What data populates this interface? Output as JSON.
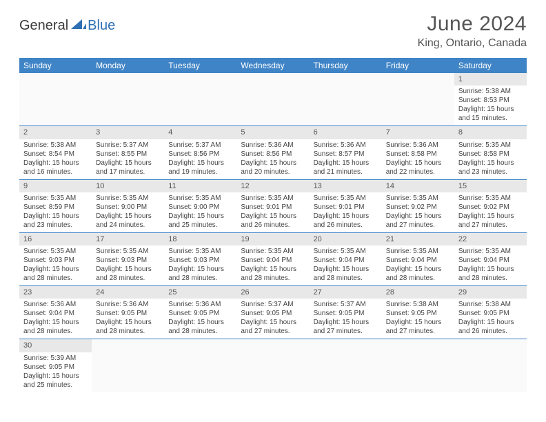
{
  "brand": {
    "general": "General",
    "blue": "Blue"
  },
  "title": {
    "month_year": "June 2024",
    "location": "King, Ontario, Canada"
  },
  "calendar": {
    "header_bg": "#3f84c6",
    "header_fg": "#ffffff",
    "daynum_bg": "#e8e8e8",
    "border_color": "#3f84c6",
    "days": [
      "Sunday",
      "Monday",
      "Tuesday",
      "Wednesday",
      "Thursday",
      "Friday",
      "Saturday"
    ],
    "weeks": [
      [
        null,
        null,
        null,
        null,
        null,
        null,
        {
          "n": "1",
          "sr": "Sunrise: 5:38 AM",
          "ss": "Sunset: 8:53 PM",
          "d1": "Daylight: 15 hours",
          "d2": "and 15 minutes."
        }
      ],
      [
        {
          "n": "2",
          "sr": "Sunrise: 5:38 AM",
          "ss": "Sunset: 8:54 PM",
          "d1": "Daylight: 15 hours",
          "d2": "and 16 minutes."
        },
        {
          "n": "3",
          "sr": "Sunrise: 5:37 AM",
          "ss": "Sunset: 8:55 PM",
          "d1": "Daylight: 15 hours",
          "d2": "and 17 minutes."
        },
        {
          "n": "4",
          "sr": "Sunrise: 5:37 AM",
          "ss": "Sunset: 8:56 PM",
          "d1": "Daylight: 15 hours",
          "d2": "and 19 minutes."
        },
        {
          "n": "5",
          "sr": "Sunrise: 5:36 AM",
          "ss": "Sunset: 8:56 PM",
          "d1": "Daylight: 15 hours",
          "d2": "and 20 minutes."
        },
        {
          "n": "6",
          "sr": "Sunrise: 5:36 AM",
          "ss": "Sunset: 8:57 PM",
          "d1": "Daylight: 15 hours",
          "d2": "and 21 minutes."
        },
        {
          "n": "7",
          "sr": "Sunrise: 5:36 AM",
          "ss": "Sunset: 8:58 PM",
          "d1": "Daylight: 15 hours",
          "d2": "and 22 minutes."
        },
        {
          "n": "8",
          "sr": "Sunrise: 5:35 AM",
          "ss": "Sunset: 8:58 PM",
          "d1": "Daylight: 15 hours",
          "d2": "and 23 minutes."
        }
      ],
      [
        {
          "n": "9",
          "sr": "Sunrise: 5:35 AM",
          "ss": "Sunset: 8:59 PM",
          "d1": "Daylight: 15 hours",
          "d2": "and 23 minutes."
        },
        {
          "n": "10",
          "sr": "Sunrise: 5:35 AM",
          "ss": "Sunset: 9:00 PM",
          "d1": "Daylight: 15 hours",
          "d2": "and 24 minutes."
        },
        {
          "n": "11",
          "sr": "Sunrise: 5:35 AM",
          "ss": "Sunset: 9:00 PM",
          "d1": "Daylight: 15 hours",
          "d2": "and 25 minutes."
        },
        {
          "n": "12",
          "sr": "Sunrise: 5:35 AM",
          "ss": "Sunset: 9:01 PM",
          "d1": "Daylight: 15 hours",
          "d2": "and 26 minutes."
        },
        {
          "n": "13",
          "sr": "Sunrise: 5:35 AM",
          "ss": "Sunset: 9:01 PM",
          "d1": "Daylight: 15 hours",
          "d2": "and 26 minutes."
        },
        {
          "n": "14",
          "sr": "Sunrise: 5:35 AM",
          "ss": "Sunset: 9:02 PM",
          "d1": "Daylight: 15 hours",
          "d2": "and 27 minutes."
        },
        {
          "n": "15",
          "sr": "Sunrise: 5:35 AM",
          "ss": "Sunset: 9:02 PM",
          "d1": "Daylight: 15 hours",
          "d2": "and 27 minutes."
        }
      ],
      [
        {
          "n": "16",
          "sr": "Sunrise: 5:35 AM",
          "ss": "Sunset: 9:03 PM",
          "d1": "Daylight: 15 hours",
          "d2": "and 28 minutes."
        },
        {
          "n": "17",
          "sr": "Sunrise: 5:35 AM",
          "ss": "Sunset: 9:03 PM",
          "d1": "Daylight: 15 hours",
          "d2": "and 28 minutes."
        },
        {
          "n": "18",
          "sr": "Sunrise: 5:35 AM",
          "ss": "Sunset: 9:03 PM",
          "d1": "Daylight: 15 hours",
          "d2": "and 28 minutes."
        },
        {
          "n": "19",
          "sr": "Sunrise: 5:35 AM",
          "ss": "Sunset: 9:04 PM",
          "d1": "Daylight: 15 hours",
          "d2": "and 28 minutes."
        },
        {
          "n": "20",
          "sr": "Sunrise: 5:35 AM",
          "ss": "Sunset: 9:04 PM",
          "d1": "Daylight: 15 hours",
          "d2": "and 28 minutes."
        },
        {
          "n": "21",
          "sr": "Sunrise: 5:35 AM",
          "ss": "Sunset: 9:04 PM",
          "d1": "Daylight: 15 hours",
          "d2": "and 28 minutes."
        },
        {
          "n": "22",
          "sr": "Sunrise: 5:35 AM",
          "ss": "Sunset: 9:04 PM",
          "d1": "Daylight: 15 hours",
          "d2": "and 28 minutes."
        }
      ],
      [
        {
          "n": "23",
          "sr": "Sunrise: 5:36 AM",
          "ss": "Sunset: 9:04 PM",
          "d1": "Daylight: 15 hours",
          "d2": "and 28 minutes."
        },
        {
          "n": "24",
          "sr": "Sunrise: 5:36 AM",
          "ss": "Sunset: 9:05 PM",
          "d1": "Daylight: 15 hours",
          "d2": "and 28 minutes."
        },
        {
          "n": "25",
          "sr": "Sunrise: 5:36 AM",
          "ss": "Sunset: 9:05 PM",
          "d1": "Daylight: 15 hours",
          "d2": "and 28 minutes."
        },
        {
          "n": "26",
          "sr": "Sunrise: 5:37 AM",
          "ss": "Sunset: 9:05 PM",
          "d1": "Daylight: 15 hours",
          "d2": "and 27 minutes."
        },
        {
          "n": "27",
          "sr": "Sunrise: 5:37 AM",
          "ss": "Sunset: 9:05 PM",
          "d1": "Daylight: 15 hours",
          "d2": "and 27 minutes."
        },
        {
          "n": "28",
          "sr": "Sunrise: 5:38 AM",
          "ss": "Sunset: 9:05 PM",
          "d1": "Daylight: 15 hours",
          "d2": "and 27 minutes."
        },
        {
          "n": "29",
          "sr": "Sunrise: 5:38 AM",
          "ss": "Sunset: 9:05 PM",
          "d1": "Daylight: 15 hours",
          "d2": "and 26 minutes."
        }
      ],
      [
        {
          "n": "30",
          "sr": "Sunrise: 5:39 AM",
          "ss": "Sunset: 9:05 PM",
          "d1": "Daylight: 15 hours",
          "d2": "and 25 minutes."
        },
        null,
        null,
        null,
        null,
        null,
        null
      ]
    ]
  }
}
